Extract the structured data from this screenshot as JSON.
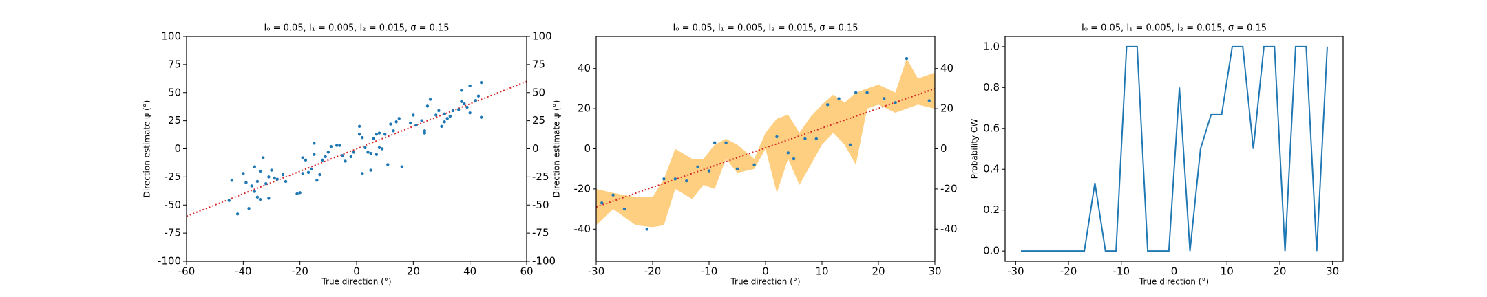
{
  "chart_data": [
    {
      "type": "scatter",
      "title": "I₀ = 0.05, I₁ = 0.005, I₂ = 0.015, σ = 0.15",
      "xlabel": "True direction (°)",
      "ylabel": "Direction estimate ψ (°)",
      "x": [
        -44,
        -45,
        -42,
        -40,
        -39,
        -38,
        -37,
        -36,
        -36,
        -35,
        -35,
        -34,
        -34,
        -33,
        -32,
        -31,
        -31,
        -30,
        -29,
        -28,
        -26,
        -25,
        -21,
        -20,
        -19,
        -19,
        -18,
        -17,
        -16,
        -15,
        -15,
        -14,
        -13,
        -12,
        -11,
        -10,
        -9,
        -7,
        -6,
        -5,
        -4,
        -2,
        -1,
        1,
        1,
        2,
        2,
        3,
        4,
        5,
        5,
        6,
        7,
        7,
        8,
        8,
        9,
        10,
        11,
        12,
        13,
        14,
        15,
        16,
        19,
        20,
        21,
        23,
        24,
        24,
        25,
        26,
        28,
        29,
        30,
        31,
        31,
        32,
        33,
        34,
        36,
        37,
        37,
        38,
        39,
        40,
        40,
        42,
        43,
        44,
        44
      ],
      "values": [
        -28,
        -46,
        -58,
        -22,
        -30,
        -53,
        -33,
        -16,
        -38,
        -43,
        -29,
        -45,
        -20,
        -8,
        -31,
        -44,
        -25,
        -19,
        -26,
        -27,
        -23,
        -29,
        -40,
        -39,
        -22,
        -8,
        -10,
        -21,
        -18,
        -5,
        5,
        -28,
        -23,
        -10,
        -7,
        -3,
        2,
        3,
        3,
        -6,
        -11,
        -7,
        -3,
        13,
        20,
        -22,
        10,
        1,
        -3,
        -4,
        -19,
        9,
        13,
        -5,
        1,
        14,
        0,
        13,
        -14,
        22,
        16,
        24,
        27,
        -16,
        23,
        30,
        21,
        25,
        14,
        16,
        38,
        44,
        30,
        34,
        20,
        31,
        24,
        27,
        29,
        34,
        35,
        42,
        52,
        40,
        37,
        56,
        32,
        43,
        47,
        28,
        59
      ],
      "color": "#1f77b4",
      "xlim": [
        -60,
        60
      ],
      "xticks": [
        -60,
        -40,
        -20,
        0,
        20,
        40,
        60
      ],
      "ylim": [
        -100,
        100
      ],
      "yticks": [
        -100,
        -75,
        -50,
        -25,
        0,
        25,
        50,
        75,
        100
      ],
      "y2lim": [
        -100,
        100
      ],
      "y2ticks": [
        -100,
        -75,
        -50,
        -25,
        0,
        25,
        50,
        75,
        100
      ],
      "fit": {
        "x": [
          -60,
          60
        ],
        "values": [
          -60,
          60
        ],
        "color": "#d62728"
      }
    },
    {
      "type": "band",
      "title": "I₀ = 0.05, I₁ = 0.005, I₂ = 0.015, σ = 0.15",
      "xlabel": "True direction (°)",
      "ylabel": "Direction estimate ψ (°)",
      "x": [
        -29,
        -27,
        -25,
        -21,
        -18,
        -16,
        -14,
        -12,
        -10,
        -9,
        -7,
        -5,
        -2,
        2,
        4,
        5,
        7,
        9,
        11,
        13,
        15,
        16,
        18,
        21,
        23,
        25,
        29
      ],
      "values": [
        -27,
        -23,
        -30,
        -40,
        -15,
        -15,
        -16,
        -9,
        -11,
        3,
        3,
        -10,
        -8,
        6,
        -2,
        -5,
        5,
        5,
        22,
        25,
        2,
        28,
        28,
        25,
        23,
        45,
        24
      ],
      "color": "#1f77b4",
      "band": {
        "x": [
          -30,
          -27,
          -23,
          -20,
          -18,
          -16,
          -13,
          -11,
          -9,
          -7,
          -5,
          -2,
          0,
          2,
          4,
          6,
          8,
          10,
          12,
          14,
          16,
          18,
          20,
          23,
          25,
          27,
          30
        ],
        "upper": [
          -20,
          -22,
          -24,
          -24,
          -15,
          0,
          -5,
          -5,
          2,
          5,
          2,
          -5,
          8,
          15,
          17,
          8,
          16,
          22,
          27,
          23,
          28,
          30,
          32,
          28,
          45,
          35,
          38
        ],
        "lower": [
          -38,
          -30,
          -38,
          -39,
          -38,
          -20,
          -25,
          -18,
          -20,
          -5,
          -12,
          -10,
          0,
          -22,
          -5,
          -18,
          -8,
          2,
          8,
          2,
          -8,
          20,
          22,
          18,
          20,
          22,
          20
        ],
        "color": "#fdbf55"
      },
      "xlim": [
        -30,
        30
      ],
      "xticks": [
        -30,
        -20,
        -10,
        0,
        10,
        20,
        30
      ],
      "ylim": [
        -56,
        56
      ],
      "yticks": [
        -40,
        -20,
        0,
        20,
        40
      ],
      "y2lim": [
        -56,
        56
      ],
      "y2ticks": [
        -40,
        -20,
        0,
        20,
        40
      ],
      "fit": {
        "x": [
          -30,
          30
        ],
        "values": [
          -29,
          30
        ],
        "color": "#d62728"
      }
    },
    {
      "type": "line",
      "title": "I₀ = 0.05, I₁ = 0.005, I₂ = 0.015, σ = 0.15",
      "xlabel": "True direction (°)",
      "ylabel": "Probability CW",
      "x": [
        -29,
        -27,
        -25,
        -23,
        -21,
        -19,
        -17,
        -15,
        -13,
        -11,
        -9,
        -7,
        -5,
        -3,
        -1,
        1,
        3,
        5,
        7,
        9,
        11,
        13,
        15,
        17,
        19,
        21,
        23,
        25,
        27,
        29
      ],
      "values": [
        0,
        0,
        0,
        0,
        0,
        0,
        0,
        0.333,
        0,
        0,
        1,
        1,
        0,
        0,
        0,
        0.8,
        0,
        0.5,
        0.667,
        0.667,
        1,
        1,
        0.5,
        1,
        1,
        0,
        1,
        1,
        0,
        1
      ],
      "color": "#1f77b4",
      "xlim": [
        -32,
        32
      ],
      "xticks": [
        -30,
        -20,
        -10,
        0,
        10,
        20,
        30
      ],
      "ylim": [
        -0.05,
        1.05
      ],
      "yticks": [
        {
          "value": 0,
          "label": "0.0"
        },
        0.2,
        0.4,
        0.6,
        0.8,
        {
          "value": 1,
          "label": "1.0"
        }
      ]
    }
  ]
}
